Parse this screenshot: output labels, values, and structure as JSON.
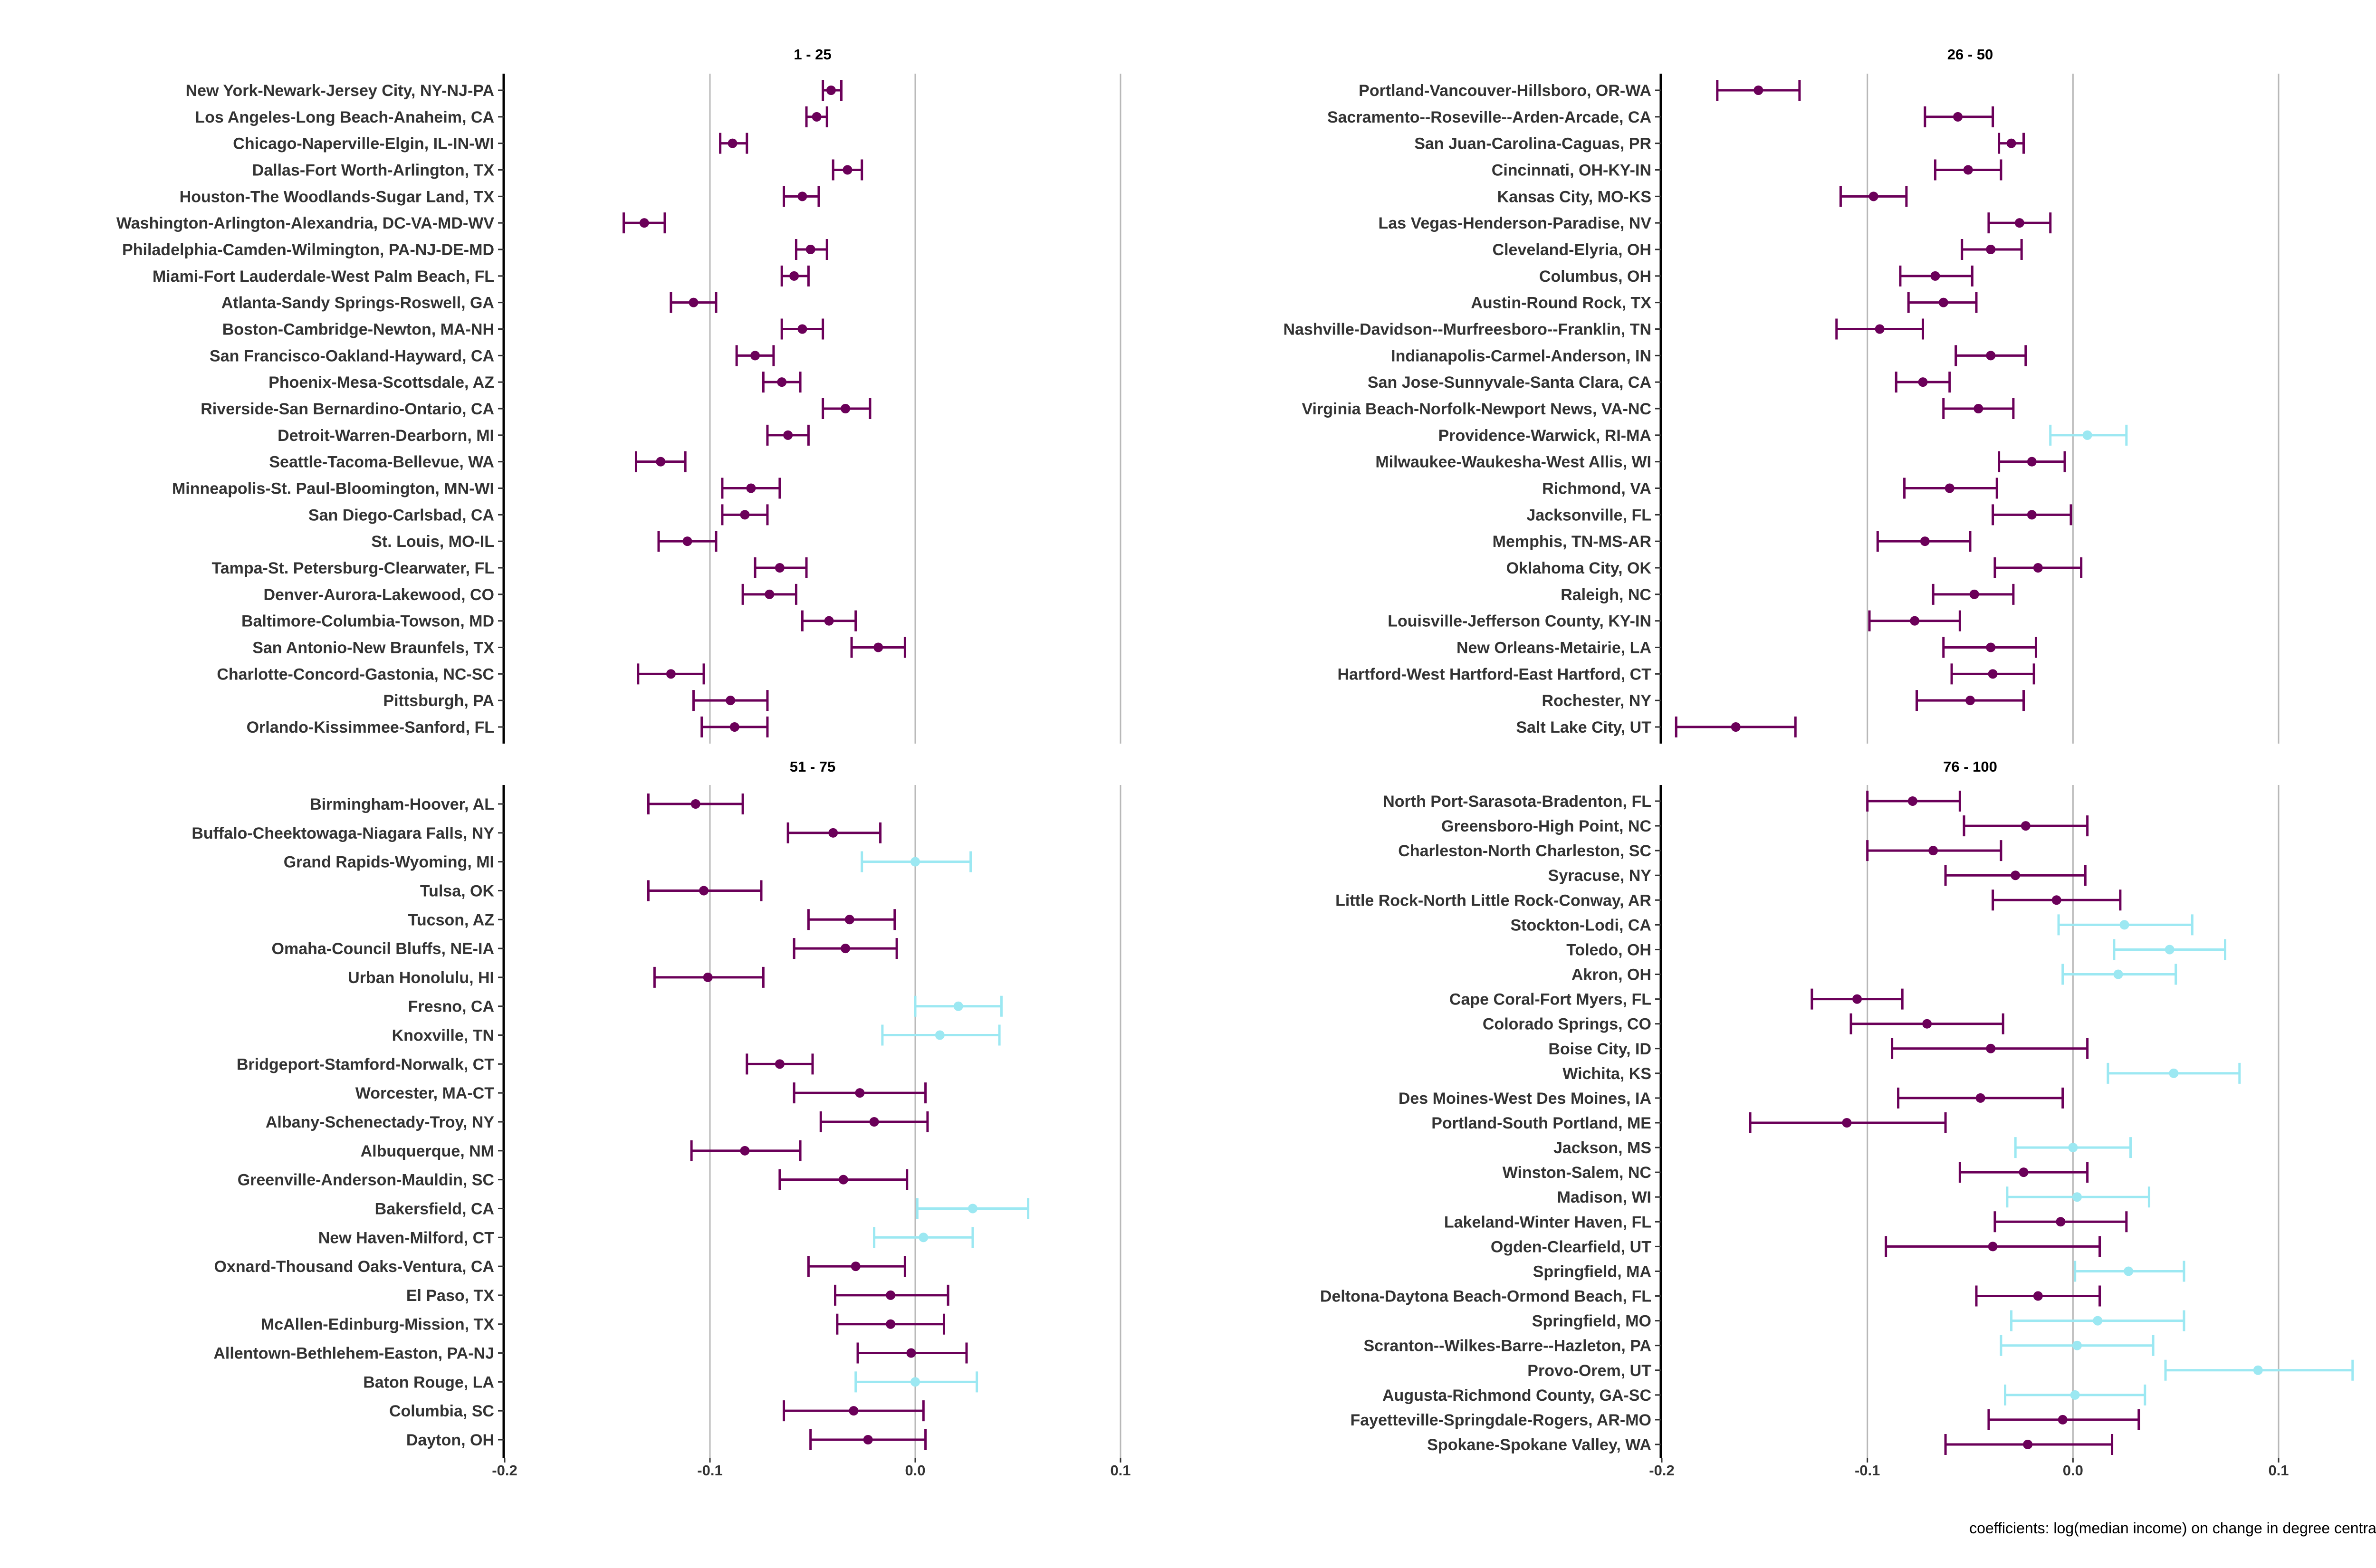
{
  "caption": "coefficients: log(median income) on change in degree centrality",
  "colors": {
    "significant": "#6b0059",
    "not_significant": "#9ce8f2",
    "gridline": "#b8b8b8",
    "axis": "#000000"
  },
  "chart_data": [
    {
      "type": "scatter",
      "title": "1 - 25",
      "xlim": [
        -0.2,
        0.1
      ],
      "xticks": [
        -0.2,
        -0.1,
        0.0,
        0.1
      ],
      "xtick_labels": [
        "-0.2",
        "-0.1",
        "0.0",
        "0.1"
      ],
      "grid": "vertical",
      "points": [
        {
          "label": "New York-Newark-Jersey City, NY-NJ-PA",
          "estimate": -0.041,
          "lower": -0.045,
          "upper": -0.036,
          "significant": true
        },
        {
          "label": "Los Angeles-Long Beach-Anaheim, CA",
          "estimate": -0.048,
          "lower": -0.053,
          "upper": -0.043,
          "significant": true
        },
        {
          "label": "Chicago-Naperville-Elgin, IL-IN-WI",
          "estimate": -0.089,
          "lower": -0.095,
          "upper": -0.082,
          "significant": true
        },
        {
          "label": "Dallas-Fort Worth-Arlington, TX",
          "estimate": -0.033,
          "lower": -0.04,
          "upper": -0.026,
          "significant": true
        },
        {
          "label": "Houston-The Woodlands-Sugar Land, TX",
          "estimate": -0.055,
          "lower": -0.064,
          "upper": -0.047,
          "significant": true
        },
        {
          "label": "Washington-Arlington-Alexandria, DC-VA-MD-WV",
          "estimate": -0.132,
          "lower": -0.142,
          "upper": -0.122,
          "significant": true
        },
        {
          "label": "Philadelphia-Camden-Wilmington, PA-NJ-DE-MD",
          "estimate": -0.051,
          "lower": -0.058,
          "upper": -0.043,
          "significant": true
        },
        {
          "label": "Miami-Fort Lauderdale-West Palm Beach, FL",
          "estimate": -0.059,
          "lower": -0.065,
          "upper": -0.052,
          "significant": true
        },
        {
          "label": "Atlanta-Sandy Springs-Roswell, GA",
          "estimate": -0.108,
          "lower": -0.119,
          "upper": -0.097,
          "significant": true
        },
        {
          "label": "Boston-Cambridge-Newton, MA-NH",
          "estimate": -0.055,
          "lower": -0.065,
          "upper": -0.045,
          "significant": true
        },
        {
          "label": "San Francisco-Oakland-Hayward, CA",
          "estimate": -0.078,
          "lower": -0.087,
          "upper": -0.069,
          "significant": true
        },
        {
          "label": "Phoenix-Mesa-Scottsdale, AZ",
          "estimate": -0.065,
          "lower": -0.074,
          "upper": -0.056,
          "significant": true
        },
        {
          "label": "Riverside-San Bernardino-Ontario, CA",
          "estimate": -0.034,
          "lower": -0.045,
          "upper": -0.022,
          "significant": true
        },
        {
          "label": "Detroit-Warren-Dearborn, MI",
          "estimate": -0.062,
          "lower": -0.072,
          "upper": -0.052,
          "significant": true
        },
        {
          "label": "Seattle-Tacoma-Bellevue, WA",
          "estimate": -0.124,
          "lower": -0.136,
          "upper": -0.112,
          "significant": true
        },
        {
          "label": "Minneapolis-St. Paul-Bloomington, MN-WI",
          "estimate": -0.08,
          "lower": -0.094,
          "upper": -0.066,
          "significant": true
        },
        {
          "label": "San Diego-Carlsbad, CA",
          "estimate": -0.083,
          "lower": -0.094,
          "upper": -0.072,
          "significant": true
        },
        {
          "label": "St. Louis, MO-IL",
          "estimate": -0.111,
          "lower": -0.125,
          "upper": -0.097,
          "significant": true
        },
        {
          "label": "Tampa-St. Petersburg-Clearwater, FL",
          "estimate": -0.066,
          "lower": -0.078,
          "upper": -0.053,
          "significant": true
        },
        {
          "label": "Denver-Aurora-Lakewood, CO",
          "estimate": -0.071,
          "lower": -0.084,
          "upper": -0.058,
          "significant": true
        },
        {
          "label": "Baltimore-Columbia-Towson, MD",
          "estimate": -0.042,
          "lower": -0.055,
          "upper": -0.029,
          "significant": true
        },
        {
          "label": "San Antonio-New Braunfels, TX",
          "estimate": -0.018,
          "lower": -0.031,
          "upper": -0.005,
          "significant": true
        },
        {
          "label": "Charlotte-Concord-Gastonia, NC-SC",
          "estimate": -0.119,
          "lower": -0.135,
          "upper": -0.103,
          "significant": true
        },
        {
          "label": "Pittsburgh, PA",
          "estimate": -0.09,
          "lower": -0.108,
          "upper": -0.072,
          "significant": true
        },
        {
          "label": "Orlando-Kissimmee-Sanford, FL",
          "estimate": -0.088,
          "lower": -0.104,
          "upper": -0.072,
          "significant": true
        }
      ]
    },
    {
      "type": "scatter",
      "title": "26 - 50",
      "xlim": [
        -0.2,
        0.1
      ],
      "xticks": [
        -0.2,
        -0.1,
        0.0,
        0.1
      ],
      "xtick_labels": [
        "-0.2",
        "-0.1",
        "0.0",
        "0.1"
      ],
      "grid": "vertical",
      "points": [
        {
          "label": "Portland-Vancouver-Hillsboro, OR-WA",
          "estimate": -0.153,
          "lower": -0.173,
          "upper": -0.133,
          "significant": true
        },
        {
          "label": "Sacramento--Roseville--Arden-Arcade, CA",
          "estimate": -0.056,
          "lower": -0.072,
          "upper": -0.039,
          "significant": true
        },
        {
          "label": "San Juan-Carolina-Caguas, PR",
          "estimate": -0.03,
          "lower": -0.036,
          "upper": -0.024,
          "significant": true
        },
        {
          "label": "Cincinnati, OH-KY-IN",
          "estimate": -0.051,
          "lower": -0.067,
          "upper": -0.035,
          "significant": true
        },
        {
          "label": "Kansas City, MO-KS",
          "estimate": -0.097,
          "lower": -0.113,
          "upper": -0.081,
          "significant": true
        },
        {
          "label": "Las Vegas-Henderson-Paradise, NV",
          "estimate": -0.026,
          "lower": -0.041,
          "upper": -0.011,
          "significant": true
        },
        {
          "label": "Cleveland-Elyria, OH",
          "estimate": -0.04,
          "lower": -0.054,
          "upper": -0.025,
          "significant": true
        },
        {
          "label": "Columbus, OH",
          "estimate": -0.067,
          "lower": -0.084,
          "upper": -0.049,
          "significant": true
        },
        {
          "label": "Austin-Round Rock, TX",
          "estimate": -0.063,
          "lower": -0.08,
          "upper": -0.047,
          "significant": true
        },
        {
          "label": "Nashville-Davidson--Murfreesboro--Franklin, TN",
          "estimate": -0.094,
          "lower": -0.115,
          "upper": -0.073,
          "significant": true
        },
        {
          "label": "Indianapolis-Carmel-Anderson, IN",
          "estimate": -0.04,
          "lower": -0.057,
          "upper": -0.023,
          "significant": true
        },
        {
          "label": "San Jose-Sunnyvale-Santa Clara, CA",
          "estimate": -0.073,
          "lower": -0.086,
          "upper": -0.06,
          "significant": true
        },
        {
          "label": "Virginia Beach-Norfolk-Newport News, VA-NC",
          "estimate": -0.046,
          "lower": -0.063,
          "upper": -0.029,
          "significant": true
        },
        {
          "label": "Providence-Warwick, RI-MA",
          "estimate": 0.007,
          "lower": -0.011,
          "upper": 0.026,
          "significant": false
        },
        {
          "label": "Milwaukee-Waukesha-West Allis, WI",
          "estimate": -0.02,
          "lower": -0.036,
          "upper": -0.004,
          "significant": true
        },
        {
          "label": "Richmond, VA",
          "estimate": -0.06,
          "lower": -0.082,
          "upper": -0.037,
          "significant": true
        },
        {
          "label": "Jacksonville, FL",
          "estimate": -0.02,
          "lower": -0.039,
          "upper": -0.001,
          "significant": true
        },
        {
          "label": "Memphis, TN-MS-AR",
          "estimate": -0.072,
          "lower": -0.095,
          "upper": -0.05,
          "significant": true
        },
        {
          "label": "Oklahoma City, OK",
          "estimate": -0.017,
          "lower": -0.038,
          "upper": 0.004,
          "significant": true
        },
        {
          "label": "Raleigh, NC",
          "estimate": -0.048,
          "lower": -0.068,
          "upper": -0.029,
          "significant": true
        },
        {
          "label": "Louisville-Jefferson County, KY-IN",
          "estimate": -0.077,
          "lower": -0.099,
          "upper": -0.055,
          "significant": true
        },
        {
          "label": "New Orleans-Metairie, LA",
          "estimate": -0.04,
          "lower": -0.063,
          "upper": -0.018,
          "significant": true
        },
        {
          "label": "Hartford-West Hartford-East Hartford, CT",
          "estimate": -0.039,
          "lower": -0.059,
          "upper": -0.019,
          "significant": true
        },
        {
          "label": "Rochester, NY",
          "estimate": -0.05,
          "lower": -0.076,
          "upper": -0.024,
          "significant": true
        },
        {
          "label": "Salt Lake City, UT",
          "estimate": -0.164,
          "lower": -0.193,
          "upper": -0.135,
          "significant": true
        }
      ]
    },
    {
      "type": "scatter",
      "title": "51 - 75",
      "xlim": [
        -0.2,
        0.1
      ],
      "xticks": [
        -0.2,
        -0.1,
        0.0,
        0.1
      ],
      "xtick_labels": [
        "-0.2",
        "-0.1",
        "0.0",
        "0.1"
      ],
      "grid": "vertical",
      "points": [
        {
          "label": "Birmingham-Hoover, AL",
          "estimate": -0.107,
          "lower": -0.13,
          "upper": -0.084,
          "significant": true
        },
        {
          "label": "Buffalo-Cheektowaga-Niagara Falls, NY",
          "estimate": -0.04,
          "lower": -0.062,
          "upper": -0.017,
          "significant": true
        },
        {
          "label": "Grand Rapids-Wyoming, MI",
          "estimate": 0.0,
          "lower": -0.026,
          "upper": 0.027,
          "significant": false
        },
        {
          "label": "Tulsa, OK",
          "estimate": -0.103,
          "lower": -0.13,
          "upper": -0.075,
          "significant": true
        },
        {
          "label": "Tucson, AZ",
          "estimate": -0.032,
          "lower": -0.052,
          "upper": -0.01,
          "significant": true
        },
        {
          "label": "Omaha-Council Bluffs, NE-IA",
          "estimate": -0.034,
          "lower": -0.059,
          "upper": -0.009,
          "significant": true
        },
        {
          "label": "Urban Honolulu, HI",
          "estimate": -0.101,
          "lower": -0.127,
          "upper": -0.074,
          "significant": true
        },
        {
          "label": "Fresno, CA",
          "estimate": 0.021,
          "lower": 0.0,
          "upper": 0.042,
          "significant": false
        },
        {
          "label": "Knoxville, TN",
          "estimate": 0.012,
          "lower": -0.016,
          "upper": 0.041,
          "significant": false
        },
        {
          "label": "Bridgeport-Stamford-Norwalk, CT",
          "estimate": -0.066,
          "lower": -0.082,
          "upper": -0.05,
          "significant": true
        },
        {
          "label": "Worcester, MA-CT",
          "estimate": -0.027,
          "lower": -0.059,
          "upper": 0.005,
          "significant": true
        },
        {
          "label": "Albany-Schenectady-Troy, NY",
          "estimate": -0.02,
          "lower": -0.046,
          "upper": 0.006,
          "significant": true
        },
        {
          "label": "Albuquerque, NM",
          "estimate": -0.083,
          "lower": -0.109,
          "upper": -0.056,
          "significant": true
        },
        {
          "label": "Greenville-Anderson-Mauldin, SC",
          "estimate": -0.035,
          "lower": -0.066,
          "upper": -0.004,
          "significant": true
        },
        {
          "label": "Bakersfield, CA",
          "estimate": 0.028,
          "lower": 0.001,
          "upper": 0.055,
          "significant": false
        },
        {
          "label": "New Haven-Milford, CT",
          "estimate": 0.004,
          "lower": -0.02,
          "upper": 0.028,
          "significant": false
        },
        {
          "label": "Oxnard-Thousand Oaks-Ventura, CA",
          "estimate": -0.029,
          "lower": -0.052,
          "upper": -0.005,
          "significant": true
        },
        {
          "label": "El Paso, TX",
          "estimate": -0.012,
          "lower": -0.039,
          "upper": 0.016,
          "significant": true
        },
        {
          "label": "McAllen-Edinburg-Mission, TX",
          "estimate": -0.012,
          "lower": -0.038,
          "upper": 0.014,
          "significant": true
        },
        {
          "label": "Allentown-Bethlehem-Easton, PA-NJ",
          "estimate": -0.002,
          "lower": -0.028,
          "upper": 0.025,
          "significant": true
        },
        {
          "label": "Baton Rouge, LA",
          "estimate": 0.0,
          "lower": -0.029,
          "upper": 0.03,
          "significant": false
        },
        {
          "label": "Columbia, SC",
          "estimate": -0.03,
          "lower": -0.064,
          "upper": 0.004,
          "significant": true
        },
        {
          "label": "Dayton, OH",
          "estimate": -0.023,
          "lower": -0.051,
          "upper": 0.005,
          "significant": true
        }
      ]
    },
    {
      "type": "scatter",
      "title": "76 - 100",
      "xlim": [
        -0.2,
        0.1
      ],
      "xticks": [
        -0.2,
        -0.1,
        0.0,
        0.1
      ],
      "xtick_labels": [
        "-0.2",
        "-0.1",
        "0.0",
        "0.1"
      ],
      "grid": "vertical",
      "points": [
        {
          "label": "North Port-Sarasota-Bradenton, FL",
          "estimate": -0.078,
          "lower": -0.1,
          "upper": -0.055,
          "significant": true
        },
        {
          "label": "Greensboro-High Point, NC",
          "estimate": -0.023,
          "lower": -0.053,
          "upper": 0.007,
          "significant": true
        },
        {
          "label": "Charleston-North Charleston, SC",
          "estimate": -0.068,
          "lower": -0.1,
          "upper": -0.035,
          "significant": true
        },
        {
          "label": "Syracuse, NY",
          "estimate": -0.028,
          "lower": -0.062,
          "upper": 0.006,
          "significant": true
        },
        {
          "label": "Little Rock-North Little Rock-Conway, AR",
          "estimate": -0.008,
          "lower": -0.039,
          "upper": 0.023,
          "significant": true
        },
        {
          "label": "Stockton-Lodi, CA",
          "estimate": 0.025,
          "lower": -0.007,
          "upper": 0.058,
          "significant": false
        },
        {
          "label": "Toledo, OH",
          "estimate": 0.047,
          "lower": 0.02,
          "upper": 0.074,
          "significant": false
        },
        {
          "label": "Akron, OH",
          "estimate": 0.022,
          "lower": -0.005,
          "upper": 0.05,
          "significant": false
        },
        {
          "label": "Cape Coral-Fort Myers, FL",
          "estimate": -0.105,
          "lower": -0.127,
          "upper": -0.083,
          "significant": true
        },
        {
          "label": "Colorado Springs, CO",
          "estimate": -0.071,
          "lower": -0.108,
          "upper": -0.034,
          "significant": true
        },
        {
          "label": "Boise City, ID",
          "estimate": -0.04,
          "lower": -0.088,
          "upper": 0.007,
          "significant": true
        },
        {
          "label": "Wichita, KS",
          "estimate": 0.049,
          "lower": 0.017,
          "upper": 0.081,
          "significant": false
        },
        {
          "label": "Des Moines-West Des Moines, IA",
          "estimate": -0.045,
          "lower": -0.085,
          "upper": -0.005,
          "significant": true
        },
        {
          "label": "Portland-South Portland, ME",
          "estimate": -0.11,
          "lower": -0.157,
          "upper": -0.062,
          "significant": true
        },
        {
          "label": "Jackson, MS",
          "estimate": 0.0,
          "lower": -0.028,
          "upper": 0.028,
          "significant": false
        },
        {
          "label": "Winston-Salem, NC",
          "estimate": -0.024,
          "lower": -0.055,
          "upper": 0.007,
          "significant": true
        },
        {
          "label": "Madison, WI",
          "estimate": 0.002,
          "lower": -0.032,
          "upper": 0.037,
          "significant": false
        },
        {
          "label": "Lakeland-Winter Haven, FL",
          "estimate": -0.006,
          "lower": -0.038,
          "upper": 0.026,
          "significant": true
        },
        {
          "label": "Ogden-Clearfield, UT",
          "estimate": -0.039,
          "lower": -0.091,
          "upper": 0.013,
          "significant": true
        },
        {
          "label": "Springfield, MA",
          "estimate": 0.027,
          "lower": 0.001,
          "upper": 0.054,
          "significant": false
        },
        {
          "label": "Deltona-Daytona Beach-Ormond Beach, FL",
          "estimate": -0.017,
          "lower": -0.047,
          "upper": 0.013,
          "significant": true
        },
        {
          "label": "Springfield, MO",
          "estimate": 0.012,
          "lower": -0.03,
          "upper": 0.054,
          "significant": false
        },
        {
          "label": "Scranton--Wilkes-Barre--Hazleton, PA",
          "estimate": 0.002,
          "lower": -0.035,
          "upper": 0.039,
          "significant": false
        },
        {
          "label": "Provo-Orem, UT",
          "estimate": 0.09,
          "lower": 0.045,
          "upper": 0.136,
          "significant": false
        },
        {
          "label": "Augusta-Richmond County, GA-SC",
          "estimate": 0.001,
          "lower": -0.033,
          "upper": 0.035,
          "significant": false
        },
        {
          "label": "Fayetteville-Springdale-Rogers, AR-MO",
          "estimate": -0.005,
          "lower": -0.041,
          "upper": 0.032,
          "significant": true
        },
        {
          "label": "Spokane-Spokane Valley, WA",
          "estimate": -0.022,
          "lower": -0.062,
          "upper": 0.019,
          "significant": true
        }
      ]
    }
  ]
}
